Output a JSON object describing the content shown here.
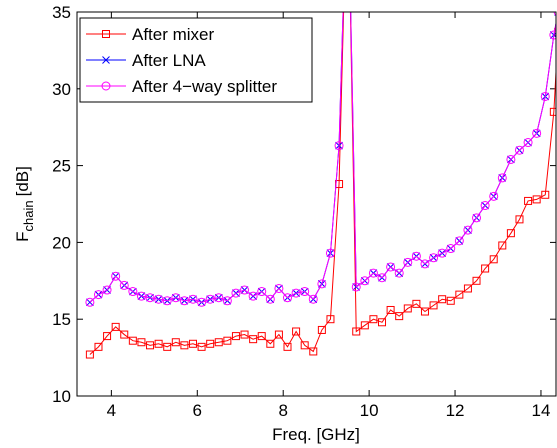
{
  "chart_data": {
    "type": "line",
    "xlabel": "Freq. [GHz]",
    "ylabel": {
      "main": "F",
      "sub": "chain",
      "unit": "[dB]"
    },
    "xlim": [
      3.2,
      14.35
    ],
    "ylim": [
      10,
      35
    ],
    "xticks": [
      4,
      6,
      8,
      10,
      12,
      14
    ],
    "yticks": [
      10,
      15,
      20,
      25,
      30,
      35
    ],
    "legend": "upper left",
    "x": [
      3.5,
      3.7,
      3.9,
      4.1,
      4.3,
      4.5,
      4.7,
      4.9,
      5.1,
      5.3,
      5.5,
      5.7,
      5.9,
      6.1,
      6.3,
      6.5,
      6.7,
      6.9,
      7.1,
      7.3,
      7.5,
      7.7,
      7.9,
      8.1,
      8.3,
      8.5,
      8.7,
      8.9,
      9.1,
      9.3,
      9.5,
      9.7,
      9.9,
      10.1,
      10.3,
      10.5,
      10.7,
      10.9,
      11.1,
      11.3,
      11.5,
      11.7,
      11.9,
      12.1,
      12.3,
      12.5,
      12.7,
      12.9,
      13.1,
      13.3,
      13.5,
      13.7,
      13.9,
      14.1,
      14.3,
      14.4
    ],
    "series": [
      {
        "name": "After mixer",
        "color": "#ff0000",
        "marker": "square",
        "values": [
          12.7,
          13.2,
          13.9,
          14.5,
          14.0,
          13.6,
          13.5,
          13.3,
          13.4,
          13.2,
          13.5,
          13.3,
          13.4,
          13.2,
          13.4,
          13.5,
          13.6,
          13.9,
          14.0,
          13.7,
          13.9,
          13.4,
          14.0,
          13.2,
          14.2,
          13.3,
          12.9,
          14.3,
          15.0,
          23.8,
          45,
          14.2,
          14.6,
          15.0,
          14.8,
          15.6,
          15.2,
          15.7,
          16.0,
          15.5,
          15.9,
          16.3,
          16.2,
          16.6,
          17.0,
          17.5,
          18.3,
          18.9,
          19.8,
          20.6,
          21.5,
          22.7,
          22.8,
          23.1,
          28.5,
          33.7
        ]
      },
      {
        "name": "After LNA",
        "color": "#0000ff",
        "marker": "x",
        "values": [
          16.1,
          16.6,
          16.9,
          17.8,
          17.2,
          16.8,
          16.5,
          16.4,
          16.3,
          16.2,
          16.4,
          16.2,
          16.3,
          16.1,
          16.3,
          16.4,
          16.2,
          16.7,
          16.9,
          16.5,
          16.8,
          16.3,
          17.0,
          16.4,
          16.7,
          16.8,
          16.3,
          17.3,
          19.3,
          26.3,
          45,
          17.1,
          17.5,
          18.0,
          17.7,
          18.4,
          18.0,
          18.7,
          19.1,
          18.6,
          19.0,
          19.3,
          19.6,
          20.1,
          20.8,
          21.6,
          22.4,
          23.0,
          24.2,
          25.4,
          26.0,
          26.5,
          27.1,
          29.5,
          33.5,
          35.0
        ]
      },
      {
        "name": "After 4−way splitter",
        "color": "#ff00ff",
        "marker": "circle",
        "values": [
          16.1,
          16.6,
          16.9,
          17.8,
          17.2,
          16.8,
          16.5,
          16.4,
          16.3,
          16.2,
          16.4,
          16.2,
          16.3,
          16.1,
          16.3,
          16.4,
          16.2,
          16.7,
          16.9,
          16.5,
          16.8,
          16.3,
          17.0,
          16.4,
          16.7,
          16.8,
          16.3,
          17.3,
          19.3,
          26.3,
          45,
          17.1,
          17.5,
          18.0,
          17.7,
          18.4,
          18.0,
          18.7,
          19.1,
          18.6,
          19.0,
          19.3,
          19.6,
          20.1,
          20.8,
          21.6,
          22.4,
          23.0,
          24.2,
          25.4,
          26.0,
          26.5,
          27.1,
          29.5,
          33.5,
          35.0
        ]
      }
    ]
  }
}
